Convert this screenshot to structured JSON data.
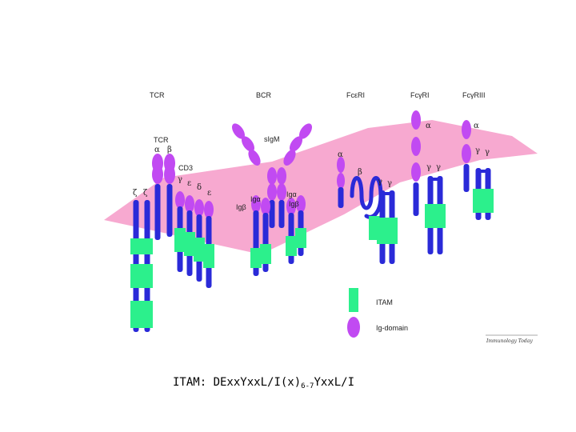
{
  "colors": {
    "membrane": "#f7a9d0",
    "tm": "#2a2ad8",
    "itam": "#2cf08c",
    "ig": "#c14af2",
    "ink": "#222222"
  },
  "headers": {
    "tcr": "TCR",
    "bcr": "BCR",
    "fceri": "FcεRI",
    "fcgri": "FcγRI",
    "fcgriii": "FcγRIII"
  },
  "labels": {
    "tcr_complex": "TCR",
    "alpha": "α",
    "beta": "β",
    "cd3": "CD3",
    "gamma": "γ",
    "epsilon": "ε",
    "delta": "δ",
    "zeta": "ζ",
    "sigm": "sIgM",
    "iga": "Igα",
    "igb": "Igβ"
  },
  "legend": {
    "itam": "ITAM",
    "ig": "Ig-domain"
  },
  "credit": "Immunology Today",
  "caption": {
    "prefix": "ITAM: DExx",
    "yxxl1": "Yxx",
    "mid": "L/I(x)",
    "sub": "6-7",
    "yxxl2": "Yxx",
    "suffix": "L/I"
  }
}
